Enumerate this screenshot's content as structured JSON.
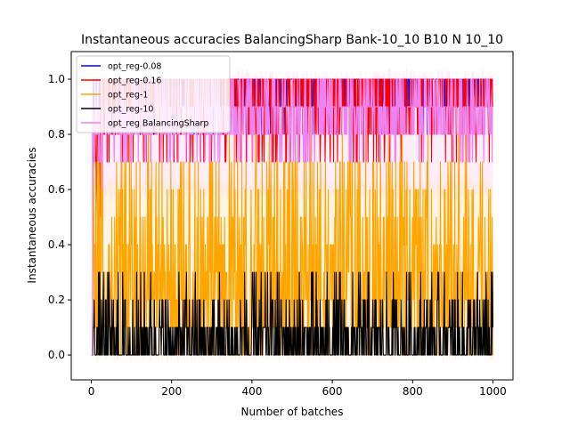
{
  "chart_data": {
    "type": "line",
    "title": "Instantaneous accuracies BalancingSharp Bank-10_10 B10 N 10_10",
    "xlabel": "Number of batches",
    "ylabel": "Instantaneous accuracies",
    "xlim": [
      -50,
      1050
    ],
    "ylim": [
      -0.09,
      1.1
    ],
    "xticks": [
      0,
      200,
      400,
      600,
      800,
      1000
    ],
    "yticks": [
      0.0,
      0.2,
      0.4,
      0.6,
      0.8,
      1.0
    ],
    "xtick_labels": [
      "0",
      "200",
      "400",
      "600",
      "800",
      "1000"
    ],
    "ytick_labels": [
      "0.0",
      "0.2",
      "0.4",
      "0.6",
      "0.8",
      "1.0"
    ],
    "legend_position": "top-left",
    "n_batches": 1000,
    "series": [
      {
        "name": "opt_reg-0.08",
        "color": "#0000ff",
        "typical_range": [
          0.9,
          1.0
        ],
        "mean": 0.97
      },
      {
        "name": "opt_reg-0.16",
        "color": "#ff0000",
        "typical_range": [
          0.7,
          1.0
        ],
        "mean": 0.93
      },
      {
        "name": "opt_reg-1",
        "color": "#ffa500",
        "typical_range": [
          0.1,
          0.6
        ],
        "mean": 0.3
      },
      {
        "name": "opt_reg-10",
        "color": "#000000",
        "typical_range": [
          0.0,
          0.2
        ],
        "mean": 0.06
      },
      {
        "name": "opt_reg BalancingSharp",
        "color": "#ee82ee",
        "typical_range": [
          0.8,
          1.0
        ],
        "mean": 0.9
      }
    ]
  }
}
